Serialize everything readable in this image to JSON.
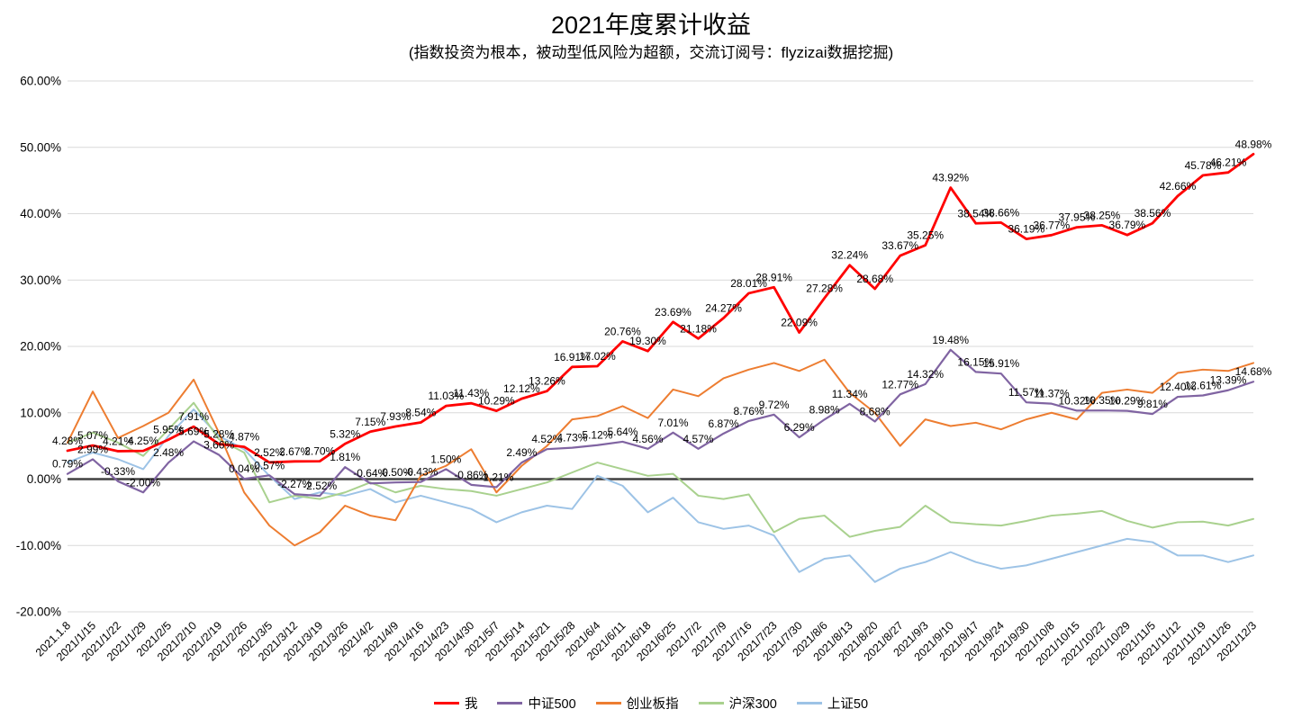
{
  "title": "2021年度累计收益",
  "subtitle": "(指数投资为根本，被动型低风险为超额，交流订阅号：flyzizai数据挖掘)",
  "colors": {
    "grid": "#D9D9D9",
    "zero_axis": "#404040",
    "data_label": "#000000",
    "tick_label": "#000000"
  },
  "chart_data": {
    "type": "line",
    "title": "2021年度累计收益",
    "subtitle": "(指数投资为根本，被动型低风险为超额，交流订阅号：flyzizai数据挖掘)",
    "xlabel": "",
    "ylabel": "",
    "ylim": [
      -20,
      60
    ],
    "grid": true,
    "legend_position": "bottom",
    "y_ticks": [
      60,
      50,
      40,
      30,
      20,
      10,
      0,
      -10,
      -20
    ],
    "y_tick_labels": [
      "60.00%",
      "50.00%",
      "40.00%",
      "30.00%",
      "20.00%",
      "10.00%",
      "0.00%",
      "-10.00%",
      "-20.00%"
    ],
    "x": [
      "2021.1.8",
      "2021/1/15",
      "2021/1/22",
      "2021/1/29",
      "2021/2/5",
      "2021/2/10",
      "2021/2/19",
      "2021/2/26",
      "2021/3/5",
      "2021/3/12",
      "2021/3/19",
      "2021/3/26",
      "2021/4/2",
      "2021/4/9",
      "2021/4/16",
      "2021/4/23",
      "2021/4/30",
      "2021/5/7",
      "2021/5/14",
      "2021/5/21",
      "2021/5/28",
      "2021/6/4",
      "2021/6/11",
      "2021/6/18",
      "2021/6/25",
      "2021/7/2",
      "2021/7/9",
      "2021/7/16",
      "2021/7/23",
      "2021/7/30",
      "2021/8/6",
      "2021/8/13",
      "2021/8/20",
      "2021/8/27",
      "2021/9/3",
      "2021/9/10",
      "2021/9/17",
      "2021/9/24",
      "2021/9/30",
      "2021/10/8",
      "2021/10/15",
      "2021/10/22",
      "2021/10/29",
      "2021/11/5",
      "2021/11/12",
      "2021/11/19",
      "2021/11/26",
      "2021/12/3"
    ],
    "series": [
      {
        "id": "sse50",
        "name": "上证50",
        "color": "#9DC3E6",
        "width": 2,
        "z": 1,
        "show_labels": false,
        "values": [
          2.5,
          4.0,
          3.0,
          1.5,
          6.5,
          10.5,
          6.5,
          4.5,
          0.5,
          -3.0,
          -2.0,
          -2.5,
          -1.5,
          -3.5,
          -2.5,
          -3.5,
          -4.5,
          -6.5,
          -5.0,
          -4.0,
          -4.5,
          0.5,
          -1.0,
          -5.0,
          -2.8,
          -6.5,
          -7.5,
          -7.0,
          -8.5,
          -14.0,
          -12.0,
          -11.5,
          -15.5,
          -13.5,
          -12.5,
          -11.0,
          -12.5,
          -13.5,
          -13.0,
          -12.0,
          -11.0,
          -10.0,
          -9.0,
          -9.5,
          -11.5,
          -11.5,
          -12.5,
          -11.5
        ]
      },
      {
        "id": "hs300",
        "name": "沪深300",
        "color": "#A9D18E",
        "width": 2,
        "z": 2,
        "show_labels": false,
        "values": [
          5.5,
          7.0,
          5.5,
          3.5,
          7.5,
          11.5,
          6.0,
          4.0,
          -3.5,
          -2.5,
          -3.0,
          -2.0,
          -0.5,
          -2.0,
          -1.0,
          -1.5,
          -1.8,
          -2.5,
          -1.5,
          -0.5,
          1.0,
          2.5,
          1.5,
          0.5,
          0.8,
          -2.5,
          -3.0,
          -2.3,
          -8.0,
          -6.0,
          -5.5,
          -8.7,
          -7.8,
          -7.2,
          -4.0,
          -6.5,
          -6.8,
          -7.0,
          -6.3,
          -5.5,
          -5.2,
          -4.8,
          -6.3,
          -7.3,
          -6.5,
          -6.4,
          -7.0,
          -6.0
        ]
      },
      {
        "id": "chinext",
        "name": "创业板指",
        "color": "#ED7D31",
        "width": 2,
        "z": 3,
        "show_labels": false,
        "values": [
          5.5,
          13.2,
          6.2,
          8.0,
          10.0,
          15.0,
          7.0,
          -2.0,
          -7.0,
          -10.0,
          -8.0,
          -4.0,
          -5.5,
          -6.2,
          0.5,
          2.0,
          4.5,
          -2.0,
          2.0,
          5.0,
          9.0,
          9.5,
          11.0,
          9.2,
          13.5,
          12.5,
          15.2,
          16.5,
          17.5,
          16.3,
          18.0,
          13.0,
          10.0,
          5.0,
          9.0,
          8.0,
          8.5,
          7.5,
          9.0,
          10.0,
          9.0,
          13.0,
          13.5,
          13.0,
          16.0,
          16.5,
          16.3,
          17.5
        ]
      },
      {
        "id": "csi500",
        "name": "中证500",
        "color": "#8064A2",
        "width": 2.2,
        "z": 4,
        "show_labels": true,
        "values": [
          0.79,
          2.99,
          -0.33,
          -2.0,
          2.48,
          5.69,
          3.66,
          0.04,
          0.57,
          -2.27,
          -2.52,
          1.81,
          -0.64,
          -0.5,
          -0.43,
          1.5,
          -0.86,
          -1.21,
          2.49,
          4.52,
          4.73,
          5.12,
          5.64,
          4.56,
          7.01,
          4.57,
          6.87,
          8.76,
          9.72,
          6.29,
          8.98,
          11.34,
          8.68,
          12.77,
          14.32,
          19.48,
          16.15,
          15.91,
          11.57,
          11.37,
          10.32,
          10.35,
          10.29,
          9.81,
          12.4,
          12.61,
          13.39,
          14.68
        ]
      },
      {
        "id": "me",
        "name": "我",
        "color": "#FF0000",
        "width": 2.8,
        "z": 5,
        "show_labels": true,
        "values": [
          4.28,
          5.07,
          4.21,
          4.25,
          5.95,
          7.91,
          5.28,
          4.87,
          2.52,
          2.67,
          2.7,
          5.32,
          7.15,
          7.93,
          8.54,
          11.03,
          11.43,
          10.29,
          12.12,
          13.26,
          16.91,
          17.02,
          20.76,
          19.3,
          23.69,
          21.18,
          24.27,
          28.01,
          28.91,
          22.09,
          27.28,
          32.24,
          28.68,
          33.67,
          35.25,
          43.92,
          38.54,
          38.66,
          36.19,
          36.77,
          37.95,
          38.25,
          36.79,
          38.56,
          42.66,
          45.78,
          46.21,
          48.98
        ]
      }
    ],
    "legend": [
      "我",
      "上证50",
      "沪深300",
      "中证500",
      "创业板指"
    ]
  }
}
